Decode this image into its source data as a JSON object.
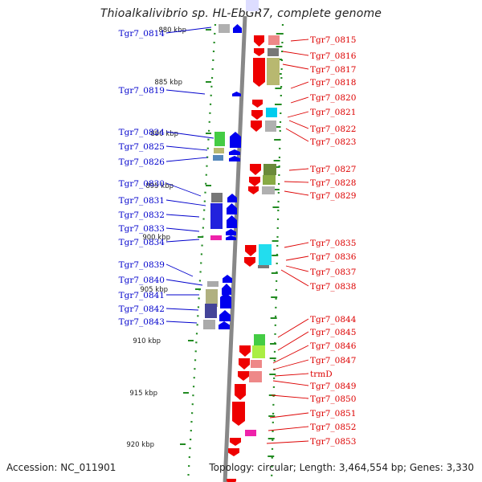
{
  "title": "Thioalkalivibrio sp. HL-EbGR7, complete genome",
  "footer": {
    "accession": "Accession: NC_011901",
    "summary": "Topology: circular; Length: 3,464,554 bp; Genes: 3,330"
  },
  "colors": {
    "backbone": "#888888",
    "minus_strand_gene": "#0000ee",
    "plus_strand_gene": "#ee0000",
    "ruler_dots": "#228b22",
    "label_minus": "#0000cc",
    "label_plus": "#dd0000"
  },
  "ruler": [
    {
      "label": "880 kbp"
    },
    {
      "label": "885 kbp"
    },
    {
      "label": "890 kbp"
    },
    {
      "label": "895 kbp"
    },
    {
      "label": "900 kbp"
    },
    {
      "label": "905 kbp"
    },
    {
      "label": "910 kbp"
    },
    {
      "label": "915 kbp"
    },
    {
      "label": "920 kbp"
    }
  ],
  "genes_minus_strand": [
    "Tgr7_0814",
    "Tgr7_0819",
    "Tgr7_0824",
    "Tgr7_0825",
    "Tgr7_0826",
    "Tgr7_0830",
    "Tgr7_0831",
    "Tgr7_0832",
    "Tgr7_0833",
    "Tgr7_0834",
    "Tgr7_0839",
    "Tgr7_0840",
    "Tgr7_0841",
    "Tgr7_0842",
    "Tgr7_0843"
  ],
  "genes_plus_strand": [
    "Tgr7_0815",
    "Tgr7_0816",
    "Tgr7_0817",
    "Tgr7_0818",
    "Tgr7_0820",
    "Tgr7_0821",
    "Tgr7_0822",
    "Tgr7_0823",
    "Tgr7_0827",
    "Tgr7_0828",
    "Tgr7_0829",
    "Tgr7_0835",
    "Tgr7_0836",
    "Tgr7_0837",
    "Tgr7_0838",
    "Tgr7_0844",
    "Tgr7_0845",
    "Tgr7_0846",
    "Tgr7_0847",
    "trmD",
    "Tgr7_0849",
    "Tgr7_0850",
    "Tgr7_0851",
    "Tgr7_0852",
    "Tgr7_0853"
  ]
}
